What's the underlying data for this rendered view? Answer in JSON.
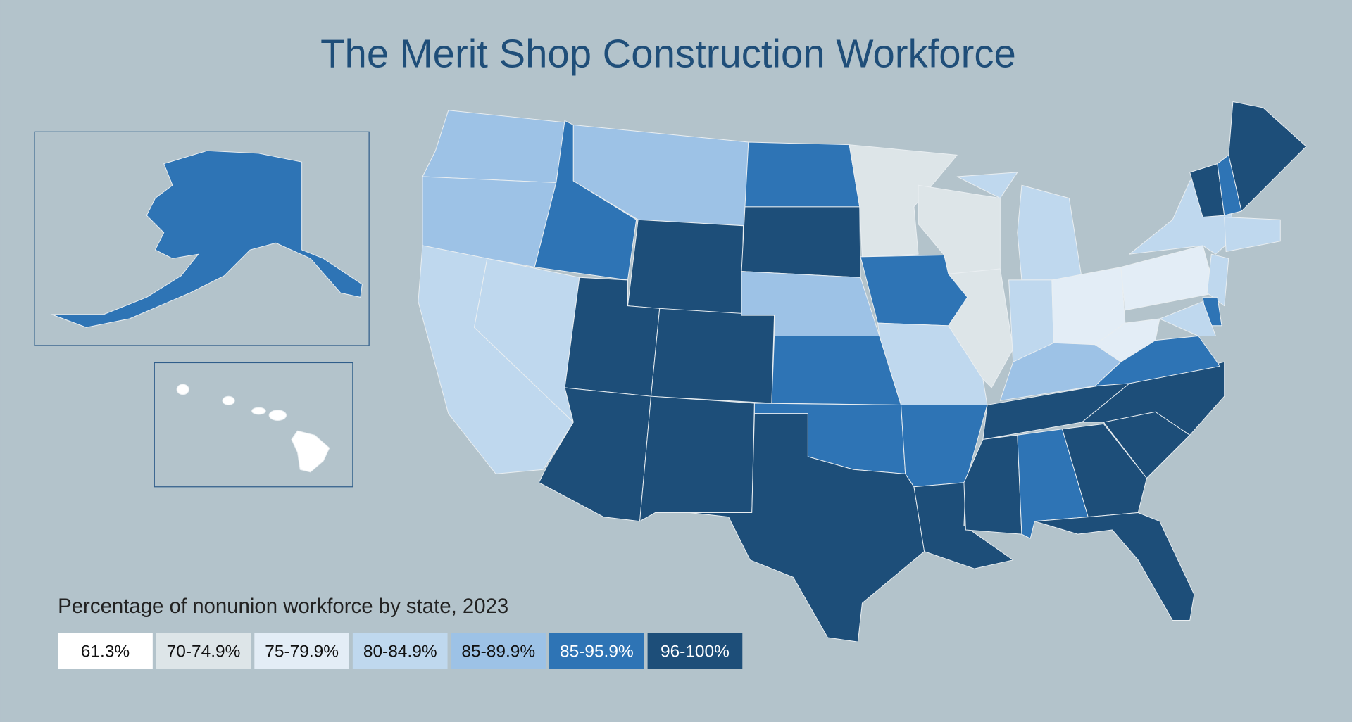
{
  "title": "The Merit Shop Construction Workforce",
  "legend": {
    "title": "Percentage of nonunion workforce by state, 2023",
    "items": [
      {
        "label": "61.3%",
        "color": "#ffffff"
      },
      {
        "label": "70-74.9%",
        "color": "#dde5e8"
      },
      {
        "label": "75-79.9%",
        "color": "#e3edf6"
      },
      {
        "label": "80-84.9%",
        "color": "#bfd8ee"
      },
      {
        "label": "85-89.9%",
        "color": "#9dc2e6"
      },
      {
        "label": "85-95.9%",
        "color": "#2e74b5"
      },
      {
        "label": "96-100%",
        "color": "#1d4e79"
      }
    ]
  }
}
